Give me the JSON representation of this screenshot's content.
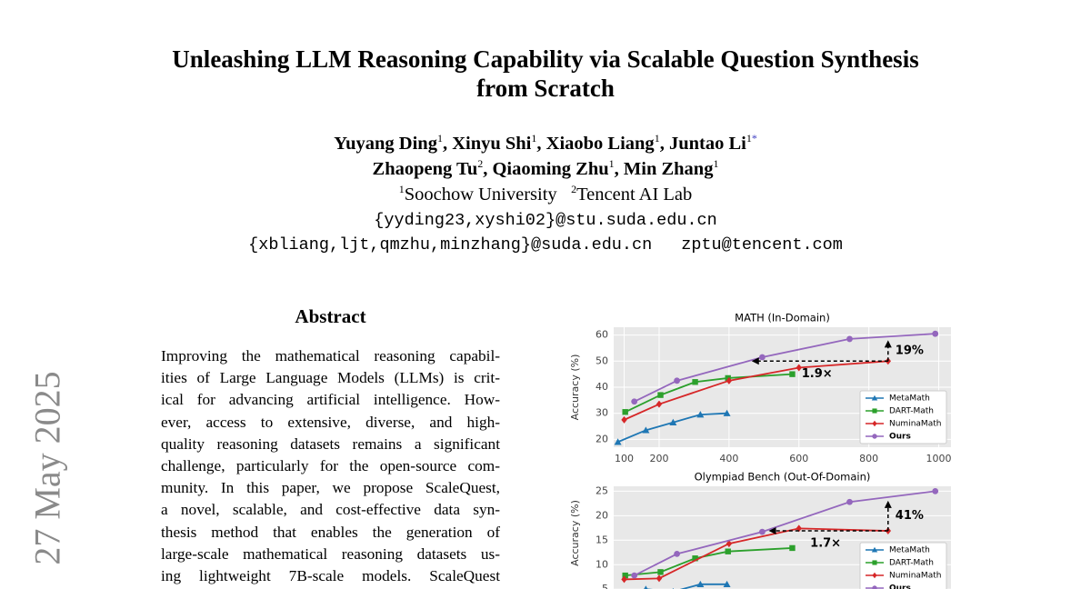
{
  "header": {
    "title_lines": [
      "Unleashing LLM Reasoning Capability via Scalable Question Synthesis",
      "from Scratch"
    ],
    "author_lines": [
      [
        {
          "text": "Yuyang Ding"
        },
        {
          "text": "1",
          "style": "sup"
        },
        {
          "text": ", Xinyu Shi"
        },
        {
          "text": "1",
          "style": "sup"
        },
        {
          "text": ", Xiaobo Liang"
        },
        {
          "text": "1",
          "style": "sup"
        },
        {
          "text": ", Juntao Li"
        },
        {
          "text": "1",
          "style": "sup"
        },
        {
          "text": "*",
          "style": "star"
        }
      ],
      [
        {
          "text": "Zhaopeng Tu"
        },
        {
          "text": "2",
          "style": "sup"
        },
        {
          "text": ", Qiaoming Zhu"
        },
        {
          "text": "1",
          "style": "sup"
        },
        {
          "text": ", Min Zhang"
        },
        {
          "text": "1",
          "style": "sup"
        }
      ]
    ],
    "affiliations": [
      {
        "text": "1",
        "style": "sup"
      },
      {
        "text": "Soochow University   "
      },
      {
        "text": "2",
        "style": "sup"
      },
      {
        "text": "Tencent AI Lab"
      }
    ],
    "email_lines": [
      [
        "{yyding23,xyshi02}@stu.suda.edu.cn"
      ],
      [
        "{xbliang,ljt,qmzhu,minzhang}@suda.edu.cn",
        "zptu@tencent.com"
      ]
    ]
  },
  "stamp": "27 May 2025",
  "abstract": {
    "heading": "Abstract",
    "lines": [
      "Improving the mathematical reasoning capabil-",
      "ities of Large Language Models (LLMs) is crit-",
      "ical for advancing artificial intelligence. How-",
      "ever, access to extensive, diverse, and high-",
      "quality reasoning datasets remains a significant",
      "challenge, particularly for the open-source com-",
      "munity. In this paper, we propose ScaleQuest,",
      "a novel, scalable, and cost-effective data syn-",
      "thesis method that enables the generation of",
      "large-scale mathematical reasoning datasets us-",
      "ing lightweight 7B-scale models. ScaleQuest"
    ]
  },
  "chart_data": [
    {
      "type": "line",
      "title": "MATH (In-Domain)",
      "ylabel": "Accuracy (%)",
      "grid": true,
      "xlim": [
        70,
        1035
      ],
      "xticks": [
        100,
        200,
        400,
        600,
        800,
        1000
      ],
      "ylim": [
        17,
        63
      ],
      "yticks": [
        20,
        30,
        40,
        50,
        60
      ],
      "annotations": {
        "gain": "19%",
        "speedup": "1.9×"
      },
      "series": [
        {
          "name": "MetaMath",
          "color": "#1f77b4",
          "marker": "triangle",
          "x": [
            82,
            162,
            240,
            318,
            394
          ],
          "values": [
            19,
            23.5,
            26.5,
            29.5,
            30
          ]
        },
        {
          "name": "DART-Math",
          "color": "#2ca02c",
          "marker": "square",
          "x": [
            103,
            204,
            303,
            397,
            581
          ],
          "values": [
            30.5,
            37,
            42,
            43.5,
            45
          ]
        },
        {
          "name": "NuminaMath",
          "color": "#d62728",
          "marker": "diamond",
          "x": [
            100,
            200,
            400,
            600,
            855
          ],
          "values": [
            27.5,
            33.5,
            42.5,
            47.5,
            50
          ]
        },
        {
          "name": "Ours",
          "color": "#9467bd",
          "marker": "circle",
          "bold": true,
          "x": [
            129,
            251,
            495,
            745,
            990
          ],
          "values": [
            34.5,
            42.5,
            51.5,
            58.5,
            60.5
          ]
        }
      ]
    },
    {
      "type": "line",
      "title": "Olympiad Bench (Out-Of-Domain)",
      "ylabel": "Accuracy (%)",
      "grid": true,
      "xlim": [
        70,
        1035
      ],
      "ylim": [
        3,
        26
      ],
      "yticks": [
        5,
        10,
        15,
        20,
        25
      ],
      "annotations": {
        "gain": "41%",
        "speedup": "1.7×"
      },
      "series": [
        {
          "name": "MetaMath",
          "color": "#1f77b4",
          "marker": "triangle",
          "x": [
            82,
            162,
            240,
            318,
            394
          ],
          "values": [
            3.5,
            5,
            4.5,
            6,
            6
          ]
        },
        {
          "name": "DART-Math",
          "color": "#2ca02c",
          "marker": "square",
          "x": [
            103,
            204,
            303,
            397,
            581
          ],
          "values": [
            7.8,
            8.5,
            11.3,
            12.7,
            13.4
          ]
        },
        {
          "name": "NuminaMath",
          "color": "#d62728",
          "marker": "diamond",
          "x": [
            100,
            200,
            400,
            600,
            855
          ],
          "values": [
            7,
            7.2,
            14.3,
            17.4,
            16.9
          ]
        },
        {
          "name": "Ours",
          "color": "#9467bd",
          "marker": "circle",
          "bold": true,
          "x": [
            129,
            251,
            495,
            745,
            990
          ],
          "values": [
            7.8,
            12.2,
            16.7,
            22.8,
            25
          ]
        }
      ]
    }
  ]
}
